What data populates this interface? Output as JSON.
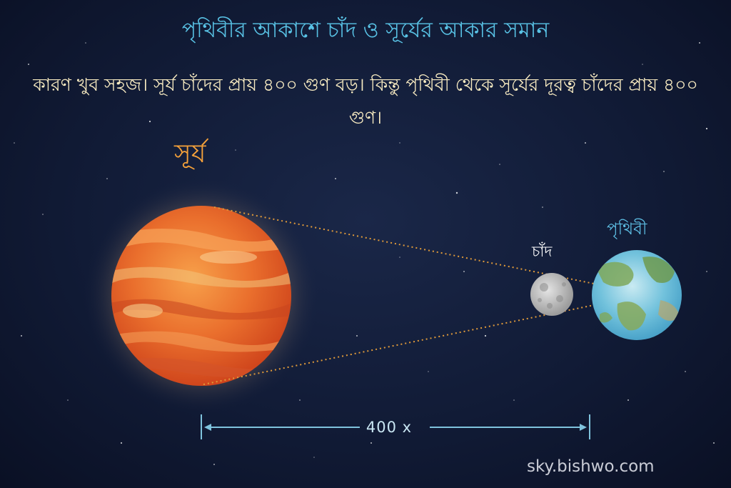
{
  "title": "পৃথিবীর আকাশে চাঁদ ও সূর্যের আকার সমান",
  "subtitle": "কারণ খুব সহজ। সূর্য চাঁদের প্রায় ৪০০ গুণ বড়। কিন্তু পৃথিবী থেকে সূর্যের দূরত্ব চাঁদের প্রায় ৪০০ গুণ।",
  "labels": {
    "sun": "সূর্য",
    "moon": "চাঁদ",
    "earth": "পৃথিবী",
    "distance": "400 x"
  },
  "footer": {
    "website": "sky.bishwo.com"
  },
  "colors": {
    "background": "#0e1730",
    "title": "#59c3e6",
    "subtitle": "#f9ecc2",
    "sun_label": "#f5a13a",
    "sun": "#e8692a",
    "moon": "#b9b9b9",
    "earth_ocean": "#5bb8d4",
    "earth_land": "#7fa85a",
    "dotted_lines": "#e09a3a",
    "distance_arrow": "#7fc3dd"
  }
}
